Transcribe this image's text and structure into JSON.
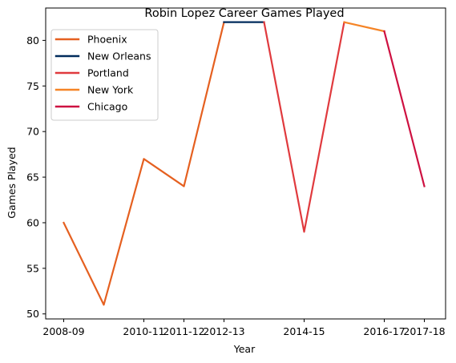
{
  "chart_data": {
    "type": "line",
    "title": "Robin Lopez Career Games Played",
    "xlabel": "Year",
    "ylabel": "Games Played",
    "x": [
      "2008-09",
      "2009-10",
      "2010-11",
      "2011-12",
      "2012-13",
      "2013-14",
      "2014-15",
      "2015-16",
      "2016-17",
      "2017-18"
    ],
    "x_tick_labels": [
      "2008-09",
      "2010-11",
      "2011-12",
      "2012-13",
      "2014-15",
      "2016-17",
      "2017-18"
    ],
    "y_ticks": [
      50,
      55,
      60,
      65,
      70,
      75,
      80
    ],
    "ylim": [
      49.45,
      83.55
    ],
    "grid": false,
    "legend_position": "upper-left",
    "series": [
      {
        "name": "Phoenix",
        "color": "#E56020",
        "x": [
          "2008-09",
          "2009-10",
          "2010-11",
          "2011-12",
          "2012-13"
        ],
        "values": [
          60,
          51,
          67,
          64,
          82
        ]
      },
      {
        "name": "New Orleans",
        "color": "#002B5C",
        "x": [
          "2012-13",
          "2013-14"
        ],
        "values": [
          82,
          82
        ]
      },
      {
        "name": "Portland",
        "color": "#E03A3E",
        "x": [
          "2013-14",
          "2014-15",
          "2015-16"
        ],
        "values": [
          82,
          59,
          82
        ]
      },
      {
        "name": "New York",
        "color": "#F58426",
        "x": [
          "2015-16",
          "2016-17"
        ],
        "values": [
          82,
          81
        ]
      },
      {
        "name": "Chicago",
        "color": "#CE1141",
        "x": [
          "2016-17",
          "2017-18"
        ],
        "values": [
          81,
          64
        ]
      }
    ]
  }
}
